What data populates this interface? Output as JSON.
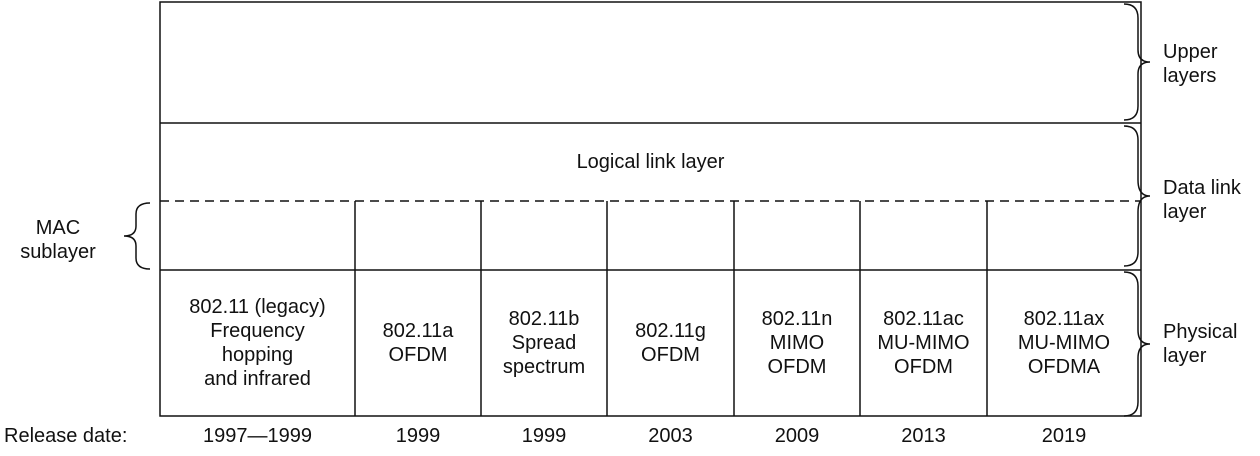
{
  "layers": {
    "logical_link": "Logical link layer"
  },
  "side_labels": {
    "upper": "Upper\nlayers",
    "data_link": "Data link\nlayer",
    "physical": "Physical\nlayer",
    "mac": "MAC\nsublayer"
  },
  "physical_standards": [
    {
      "text": "802.11 (legacy)\nFrequency\nhopping\nand infrared",
      "date": "1997—1999"
    },
    {
      "text": "802.11a\nOFDM",
      "date": "1999"
    },
    {
      "text": "802.11b\nSpread\nspectrum",
      "date": "1999"
    },
    {
      "text": "802.11g\nOFDM",
      "date": "2003"
    },
    {
      "text": "802.11n\nMIMO\nOFDM",
      "date": "2009"
    },
    {
      "text": "802.11ac\nMU-MIMO\nOFDM",
      "date": "2013"
    },
    {
      "text": "802.11ax\nMU-MIMO\nOFDMA",
      "date": "2019"
    }
  ],
  "release_date_label": "Release date:"
}
